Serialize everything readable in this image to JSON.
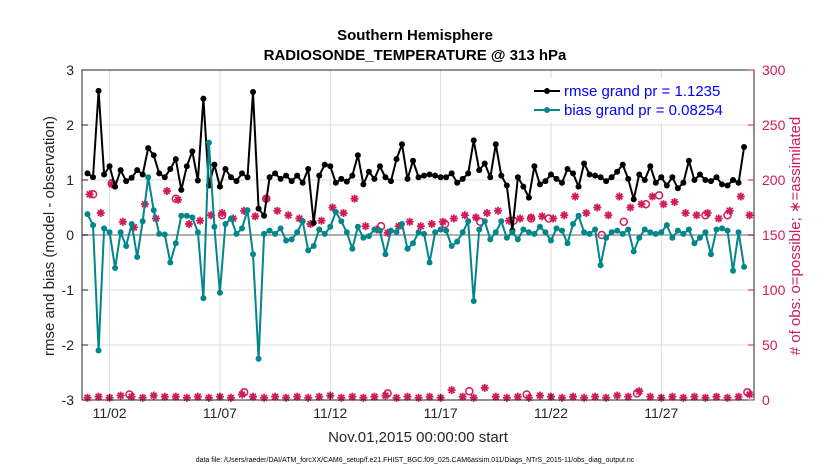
{
  "chart_data": {
    "type": "line",
    "title": "Southern Hemisphere",
    "subtitle": "RADIOSONDE_TEMPERATURE @ 313 hPa",
    "xlabel": "Nov.01,2015 00:00:00 start",
    "ylabel_left": "rmse and bias (model - observation)",
    "ylabel_right": "# of obs: o=possible; ∗=assimilated",
    "ylim_left": [
      -3,
      3
    ],
    "ylim_right": [
      0,
      300
    ],
    "yticks_left": [
      "-3",
      "-2",
      "-1",
      "0",
      "1",
      "2",
      "3"
    ],
    "yticks_right": [
      "0",
      "50",
      "100",
      "150",
      "200",
      "250",
      "300"
    ],
    "xlim": [
      0.75,
      31.2
    ],
    "xticks": [
      {
        "pos": 2,
        "label": "11/02"
      },
      {
        "pos": 7,
        "label": "11/07"
      },
      {
        "pos": 12,
        "label": "11/12"
      },
      {
        "pos": 17,
        "label": "11/17"
      },
      {
        "pos": 22,
        "label": "11/22"
      },
      {
        "pos": 27,
        "label": "11/27"
      }
    ],
    "legend_location": "top-right",
    "x_start": 1.0,
    "x_step": 0.25,
    "series": [
      {
        "name": "rmse grand pr = 1.1235",
        "color": "#000000",
        "values": [
          1.12,
          1.05,
          2.62,
          1.1,
          1.25,
          0.88,
          1.18,
          0.98,
          1.04,
          1.18,
          1.1,
          1.58,
          1.45,
          1.12,
          1.05,
          1.2,
          1.38,
          0.82,
          1.25,
          1.52,
          0.99,
          2.48,
          0.9,
          1.28,
          0.88,
          1.2,
          1.05,
          0.98,
          1.12,
          1.05,
          2.6,
          0.48,
          0.35,
          1.05,
          1.12,
          1.02,
          1.08,
          0.98,
          1.08,
          0.95,
          1.2,
          0.22,
          1.08,
          1.28,
          1.25,
          0.95,
          1.02,
          0.97,
          1.08,
          1.45,
          0.92,
          1.15,
          1.02,
          1.25,
          1.05,
          0.98,
          1.38,
          1.65,
          1.02,
          1.35,
          1.05,
          1.08,
          1.1,
          1.08,
          1.05,
          1.05,
          1.12,
          0.95,
          1.02,
          1.12,
          1.72,
          1.18,
          1.3,
          1.05,
          1.65,
          1.08,
          0.9,
          0.08,
          1.05,
          0.88,
          0.68,
          1.25,
          0.92,
          0.98,
          1.1,
          1.02,
          0.95,
          1.2,
          1.12,
          0.88,
          1.3,
          1.1,
          1.08,
          1.05,
          0.98,
          1.05,
          1.15,
          1.28,
          1.02,
          0.65,
          1.1,
          1.0,
          1.25,
          0.95,
          1.05,
          0.9,
          1.05,
          0.85,
          0.95,
          1.35,
          1.0,
          1.1,
          1.0,
          0.98,
          1.05,
          0.92,
          0.9,
          1.0,
          0.95,
          1.6
        ]
      },
      {
        "name": "bias grand pr = 0.08254",
        "color": "#00868b",
        "values": [
          0.38,
          0.18,
          -2.1,
          0.12,
          0.05,
          -0.6,
          0.05,
          -0.2,
          0.2,
          -0.4,
          0.25,
          1.05,
          0.45,
          0.02,
          0.01,
          -0.5,
          -0.15,
          0.35,
          0.35,
          0.32,
          0.05,
          -1.15,
          1.68,
          0.15,
          -1.05,
          0.2,
          0.3,
          0.02,
          0.12,
          0.45,
          -0.35,
          -2.25,
          0.02,
          0.08,
          0.02,
          0.12,
          -0.1,
          -0.08,
          0.05,
          0.25,
          -0.28,
          -0.2,
          0.1,
          0.02,
          0.15,
          0.42,
          0.25,
          0.05,
          -0.25,
          0.15,
          -0.05,
          -0.02,
          0.1,
          0.08,
          -0.35,
          0.08,
          0.05,
          0.2,
          -0.25,
          -0.15,
          0.05,
          0.02,
          -0.5,
          0.05,
          0.1,
          0.08,
          -0.2,
          -0.12,
          0.05,
          0.25,
          -1.2,
          0.1,
          0.25,
          -0.08,
          0.05,
          0.25,
          -0.05,
          0.05,
          -0.08,
          0.1,
          0.05,
          0.02,
          0.15,
          0.05,
          -0.1,
          0.12,
          0.08,
          -0.15,
          0.2,
          0.35,
          0.05,
          0.02,
          0.1,
          -0.55,
          -0.05,
          0.05,
          0.08,
          0.02,
          0.1,
          -0.3,
          -0.05,
          0.1,
          0.05,
          0.02,
          0.05,
          0.18,
          -0.05,
          0.08,
          0.02,
          0.1,
          -0.15,
          -0.05,
          0.05,
          -0.35,
          0.1,
          0.12,
          0.08,
          -0.65,
          0.05,
          -0.58
        ]
      }
    ],
    "obs_possible": [
      {
        "x": 1.25,
        "value": 187
      },
      {
        "x": 2.1,
        "value": 197
      },
      {
        "x": 5.0,
        "value": 183
      },
      {
        "x": 7.1,
        "value": 168
      },
      {
        "x": 9.1,
        "value": 183
      },
      {
        "x": 14.3,
        "value": 158
      },
      {
        "x": 17.2,
        "value": 160
      },
      {
        "x": 18.8,
        "value": 162
      },
      {
        "x": 20.3,
        "value": 163
      },
      {
        "x": 21.1,
        "value": 165
      },
      {
        "x": 21.9,
        "value": 165
      },
      {
        "x": 24.3,
        "value": 150
      },
      {
        "x": 25.3,
        "value": 162
      },
      {
        "x": 26.3,
        "value": 178
      },
      {
        "x": 26.9,
        "value": 186
      },
      {
        "x": 29.0,
        "value": 168
      },
      {
        "x": 30.0,
        "value": 168
      }
    ],
    "obs_assimilated": [
      {
        "x": 1.1,
        "value": 187
      },
      {
        "x": 1.6,
        "value": 170
      },
      {
        "x": 2.1,
        "value": 196
      },
      {
        "x": 2.6,
        "value": 162
      },
      {
        "x": 3.1,
        "value": 157
      },
      {
        "x": 3.6,
        "value": 178
      },
      {
        "x": 4.1,
        "value": 165
      },
      {
        "x": 4.6,
        "value": 190
      },
      {
        "x": 5.1,
        "value": 182
      },
      {
        "x": 5.6,
        "value": 160
      },
      {
        "x": 6.1,
        "value": 163
      },
      {
        "x": 6.6,
        "value": 168
      },
      {
        "x": 7.1,
        "value": 170
      },
      {
        "x": 7.6,
        "value": 165
      },
      {
        "x": 8.1,
        "value": 172
      },
      {
        "x": 8.6,
        "value": 167
      },
      {
        "x": 9.1,
        "value": 183
      },
      {
        "x": 9.6,
        "value": 172
      },
      {
        "x": 10.1,
        "value": 168
      },
      {
        "x": 10.6,
        "value": 165
      },
      {
        "x": 11.1,
        "value": 160
      },
      {
        "x": 11.6,
        "value": 163
      },
      {
        "x": 12.1,
        "value": 175
      },
      {
        "x": 12.6,
        "value": 170
      },
      {
        "x": 13.1,
        "value": 183
      },
      {
        "x": 13.6,
        "value": 158
      },
      {
        "x": 14.1,
        "value": 155
      },
      {
        "x": 14.6,
        "value": 152
      },
      {
        "x": 15.1,
        "value": 158
      },
      {
        "x": 15.6,
        "value": 162
      },
      {
        "x": 16.1,
        "value": 158
      },
      {
        "x": 16.6,
        "value": 160
      },
      {
        "x": 17.1,
        "value": 162
      },
      {
        "x": 17.6,
        "value": 165
      },
      {
        "x": 18.1,
        "value": 168
      },
      {
        "x": 18.6,
        "value": 166
      },
      {
        "x": 19.1,
        "value": 170
      },
      {
        "x": 19.6,
        "value": 172
      },
      {
        "x": 20.1,
        "value": 163
      },
      {
        "x": 20.6,
        "value": 165
      },
      {
        "x": 21.1,
        "value": 166
      },
      {
        "x": 21.6,
        "value": 167
      },
      {
        "x": 22.1,
        "value": 165
      },
      {
        "x": 22.6,
        "value": 168
      },
      {
        "x": 23.1,
        "value": 185
      },
      {
        "x": 23.6,
        "value": 170
      },
      {
        "x": 24.1,
        "value": 175
      },
      {
        "x": 24.6,
        "value": 168
      },
      {
        "x": 25.1,
        "value": 185
      },
      {
        "x": 25.6,
        "value": 175
      },
      {
        "x": 26.1,
        "value": 178
      },
      {
        "x": 26.6,
        "value": 185
      },
      {
        "x": 27.1,
        "value": 178
      },
      {
        "x": 27.6,
        "value": 180
      },
      {
        "x": 28.1,
        "value": 170
      },
      {
        "x": 28.6,
        "value": 168
      },
      {
        "x": 29.1,
        "value": 170
      },
      {
        "x": 29.6,
        "value": 165
      },
      {
        "x": 30.1,
        "value": 172
      },
      {
        "x": 30.6,
        "value": 185
      },
      {
        "x": 31.0,
        "value": 168
      }
    ],
    "obs_bottom_possible": [
      {
        "x": 2.9,
        "value": 5
      },
      {
        "x": 8.1,
        "value": 7
      },
      {
        "x": 14.6,
        "value": 6
      },
      {
        "x": 18.3,
        "value": 8
      },
      {
        "x": 20.9,
        "value": 5
      },
      {
        "x": 25.9,
        "value": 6
      },
      {
        "x": 30.9,
        "value": 7
      }
    ],
    "obs_bottom_assimilated": [
      {
        "x": 1.0,
        "value": 2
      },
      {
        "x": 1.5,
        "value": 3
      },
      {
        "x": 2.0,
        "value": 2
      },
      {
        "x": 2.5,
        "value": 4
      },
      {
        "x": 3.0,
        "value": 3
      },
      {
        "x": 3.5,
        "value": 2
      },
      {
        "x": 4.0,
        "value": 4
      },
      {
        "x": 4.5,
        "value": 3
      },
      {
        "x": 5.0,
        "value": 3
      },
      {
        "x": 5.5,
        "value": 2
      },
      {
        "x": 6.0,
        "value": 3
      },
      {
        "x": 6.5,
        "value": 2
      },
      {
        "x": 7.0,
        "value": 3
      },
      {
        "x": 7.5,
        "value": 2
      },
      {
        "x": 8.0,
        "value": 5
      },
      {
        "x": 8.5,
        "value": 3
      },
      {
        "x": 9.0,
        "value": 2
      },
      {
        "x": 9.5,
        "value": 3
      },
      {
        "x": 10.0,
        "value": 2
      },
      {
        "x": 10.5,
        "value": 3
      },
      {
        "x": 11.0,
        "value": 2
      },
      {
        "x": 11.5,
        "value": 3
      },
      {
        "x": 12.0,
        "value": 4
      },
      {
        "x": 12.5,
        "value": 2
      },
      {
        "x": 13.0,
        "value": 3
      },
      {
        "x": 13.5,
        "value": 2
      },
      {
        "x": 14.0,
        "value": 3
      },
      {
        "x": 14.5,
        "value": 4
      },
      {
        "x": 15.0,
        "value": 2
      },
      {
        "x": 15.5,
        "value": 3
      },
      {
        "x": 16.0,
        "value": 2
      },
      {
        "x": 16.5,
        "value": 3
      },
      {
        "x": 17.0,
        "value": 2
      },
      {
        "x": 17.5,
        "value": 9
      },
      {
        "x": 18.0,
        "value": 3
      },
      {
        "x": 18.5,
        "value": 2
      },
      {
        "x": 19.0,
        "value": 11
      },
      {
        "x": 19.5,
        "value": 3
      },
      {
        "x": 20.0,
        "value": 2
      },
      {
        "x": 20.5,
        "value": 3
      },
      {
        "x": 21.0,
        "value": 2
      },
      {
        "x": 21.5,
        "value": 4
      },
      {
        "x": 22.0,
        "value": 3
      },
      {
        "x": 22.5,
        "value": 2
      },
      {
        "x": 23.0,
        "value": 3
      },
      {
        "x": 23.5,
        "value": 2
      },
      {
        "x": 24.0,
        "value": 3
      },
      {
        "x": 24.5,
        "value": 2
      },
      {
        "x": 25.0,
        "value": 4
      },
      {
        "x": 25.5,
        "value": 3
      },
      {
        "x": 26.0,
        "value": 8
      },
      {
        "x": 26.5,
        "value": 3
      },
      {
        "x": 27.0,
        "value": 2
      },
      {
        "x": 27.5,
        "value": 3
      },
      {
        "x": 28.0,
        "value": 2
      },
      {
        "x": 28.5,
        "value": 3
      },
      {
        "x": 29.0,
        "value": 2
      },
      {
        "x": 29.5,
        "value": 3
      },
      {
        "x": 30.0,
        "value": 2
      },
      {
        "x": 30.5,
        "value": 3
      },
      {
        "x": 31.0,
        "value": 5
      }
    ],
    "colors": {
      "rmse": "#000000",
      "bias": "#00868b",
      "obs": "#d11a5a",
      "legend_text": "#0000ff",
      "grid": "#dcdcdc",
      "zero_line": "#b0b0b0"
    }
  },
  "footnote": "data file: /Users/raeder/DAI/ATM_forcXX/CAM6_setup/f.e21.FHIST_BGC.f09_025.CAM6assim.011/Diags_NTrS_2015-11/obs_diag_output.nc"
}
